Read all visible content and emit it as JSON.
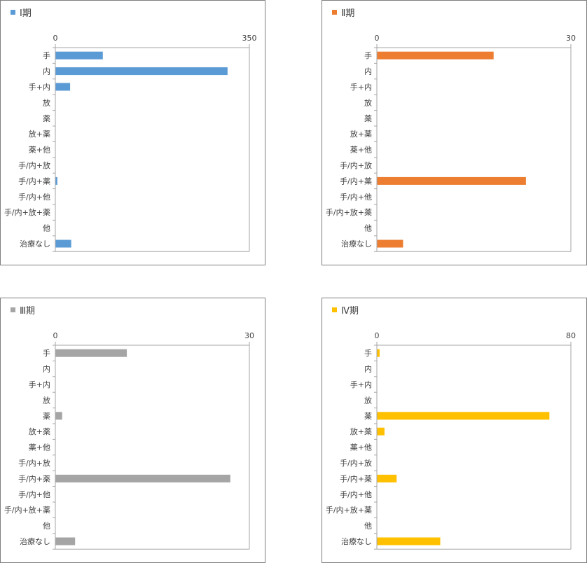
{
  "chart_data": [
    {
      "type": "bar",
      "orientation": "horizontal",
      "categories": [
        "手",
        "内",
        "手+内",
        "放",
        "薬",
        "放+薬",
        "薬+他",
        "手/内+放",
        "手/内+薬",
        "手/内+他",
        "手/内+放+薬",
        "他",
        "治療なし"
      ],
      "series": [
        {
          "name": "Ⅰ期",
          "values": [
            85,
            310,
            26,
            0,
            0,
            0,
            0,
            0,
            3,
            0,
            0,
            0,
            28
          ]
        }
      ],
      "color": "#5B9BD5",
      "xlim": [
        0,
        350
      ],
      "xticks": [
        "0",
        "350"
      ],
      "legend": "top-left",
      "grid": false
    },
    {
      "type": "bar",
      "orientation": "horizontal",
      "categories": [
        "手",
        "内",
        "手+内",
        "放",
        "薬",
        "放+薬",
        "薬+他",
        "手/内+放",
        "手/内+薬",
        "手/内+他",
        "手/内+放+薬",
        "他",
        "治療なし"
      ],
      "series": [
        {
          "name": "Ⅱ期",
          "values": [
            18,
            0,
            0,
            0,
            0,
            0,
            0,
            0,
            23,
            0,
            0,
            0,
            4
          ]
        }
      ],
      "color": "#ED7D31",
      "xlim": [
        0,
        30
      ],
      "xticks": [
        "0",
        "30"
      ],
      "legend": "top-left",
      "grid": false
    },
    {
      "type": "bar",
      "orientation": "horizontal",
      "categories": [
        "手",
        "内",
        "手+内",
        "放",
        "薬",
        "放+薬",
        "薬+他",
        "手/内+放",
        "手/内+薬",
        "手/内+他",
        "手/内+放+薬",
        "他",
        "治療なし"
      ],
      "series": [
        {
          "name": "Ⅲ期",
          "values": [
            11,
            0,
            0,
            0,
            1,
            0,
            0,
            0,
            27,
            0,
            0,
            0,
            3
          ]
        }
      ],
      "color": "#A5A5A5",
      "xlim": [
        0,
        30
      ],
      "xticks": [
        "0",
        "30"
      ],
      "legend": "top-left",
      "grid": false
    },
    {
      "type": "bar",
      "orientation": "horizontal",
      "categories": [
        "手",
        "内",
        "手+内",
        "放",
        "薬",
        "放+薬",
        "薬+他",
        "手/内+放",
        "手/内+薬",
        "手/内+他",
        "手/内+放+薬",
        "他",
        "治療なし"
      ],
      "series": [
        {
          "name": "Ⅳ期",
          "values": [
            1,
            0,
            0,
            0,
            71,
            3,
            0,
            0,
            8,
            0,
            0,
            0,
            26
          ]
        }
      ],
      "color": "#FFC000",
      "xlim": [
        0,
        80
      ],
      "xticks": [
        "0",
        "80"
      ],
      "legend": "top-left",
      "grid": false
    }
  ]
}
